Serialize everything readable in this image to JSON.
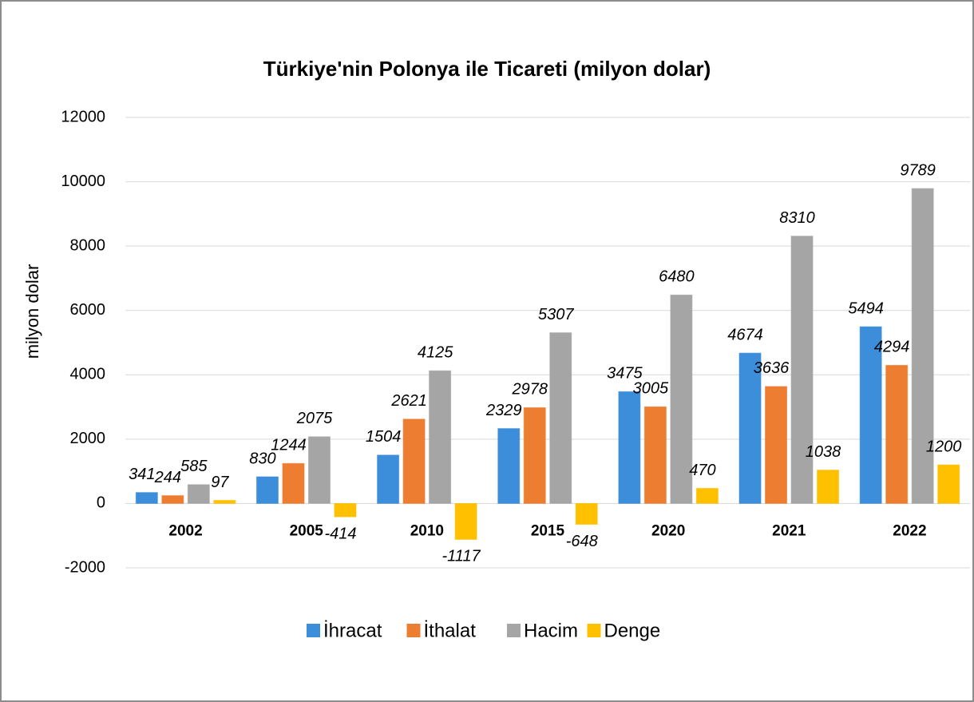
{
  "chart_data": {
    "type": "bar",
    "title": "Türkiye'nin Polonya ile Ticareti (milyon dolar)",
    "y_label": "milyon dolar",
    "categories": [
      "2002",
      "2005",
      "2010",
      "2015",
      "2020",
      "2021",
      "2022"
    ],
    "series": [
      {
        "name": "İhracat",
        "color": "#3c8edb",
        "values": [
          341,
          830,
          1504,
          2329,
          3475,
          4674,
          5494
        ]
      },
      {
        "name": "İthalat",
        "color": "#ed7d31",
        "values": [
          244,
          1244,
          2621,
          2978,
          3005,
          3636,
          4294
        ]
      },
      {
        "name": "Hacim",
        "color": "#a5a5a5",
        "values": [
          585,
          2075,
          4125,
          5307,
          6480,
          8310,
          9789
        ]
      },
      {
        "name": "Denge",
        "color": "#ffc000",
        "values": [
          97,
          -414,
          -1117,
          -648,
          470,
          1038,
          1200
        ]
      }
    ],
    "ylim": [
      -2000,
      12000
    ],
    "yticks": [
      -2000,
      0,
      2000,
      4000,
      6000,
      8000,
      10000,
      12000
    ],
    "grid": true,
    "legend": "bottom"
  }
}
